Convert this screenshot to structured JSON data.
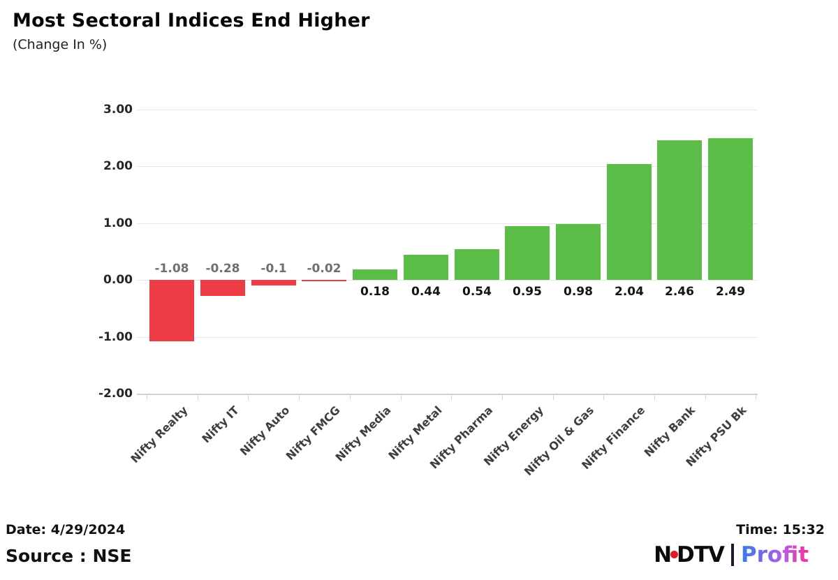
{
  "header": {
    "title": "Most Sectoral Indices End Higher",
    "subtitle": "(Change In %)"
  },
  "chart_data": {
    "type": "bar",
    "title": "Most Sectoral Indices End Higher",
    "subtitle": "(Change In %)",
    "categories": [
      "Nifty Realty",
      "Nifty IT",
      "Nifty Auto",
      "Nifty FMCG",
      "Nifty Media",
      "Nifty Metal",
      "Nifty Pharma",
      "Nifty Energy",
      "Nifty Oil & Gas",
      "Nifty Finance",
      "Nifty Bank",
      "Nifty PSU Bk"
    ],
    "values": [
      -1.08,
      -0.28,
      -0.1,
      -0.02,
      0.18,
      0.44,
      0.54,
      0.95,
      0.98,
      2.04,
      2.46,
      2.49
    ],
    "value_labels": [
      "-1.08",
      "-0.28",
      "-0.1",
      "-0.02",
      "0.18",
      "0.44",
      "0.54",
      "0.95",
      "0.98",
      "2.04",
      "2.46",
      "2.49"
    ],
    "ylim": [
      -2,
      3
    ],
    "yticks": [
      3,
      2,
      1,
      0,
      -1,
      -2
    ],
    "ytick_labels": [
      "3.00",
      "2.00",
      "1.00",
      "0.00",
      "-1.00",
      "-2.00"
    ],
    "grid": true,
    "legend": false,
    "colors": {
      "positive": "#5cbe48",
      "negative": "#ee3c46",
      "positive_label": "#141414",
      "negative_label": "#6f6f6f"
    }
  },
  "footer": {
    "date_label": "Date: 4/29/2024",
    "source_label": "Source : NSE",
    "time_label": "Time: 15:32"
  },
  "logo": {
    "ndtv_n": "N",
    "ndtv_rest": "DTV",
    "profit": "Profit",
    "dot_color": "#e11b23"
  }
}
